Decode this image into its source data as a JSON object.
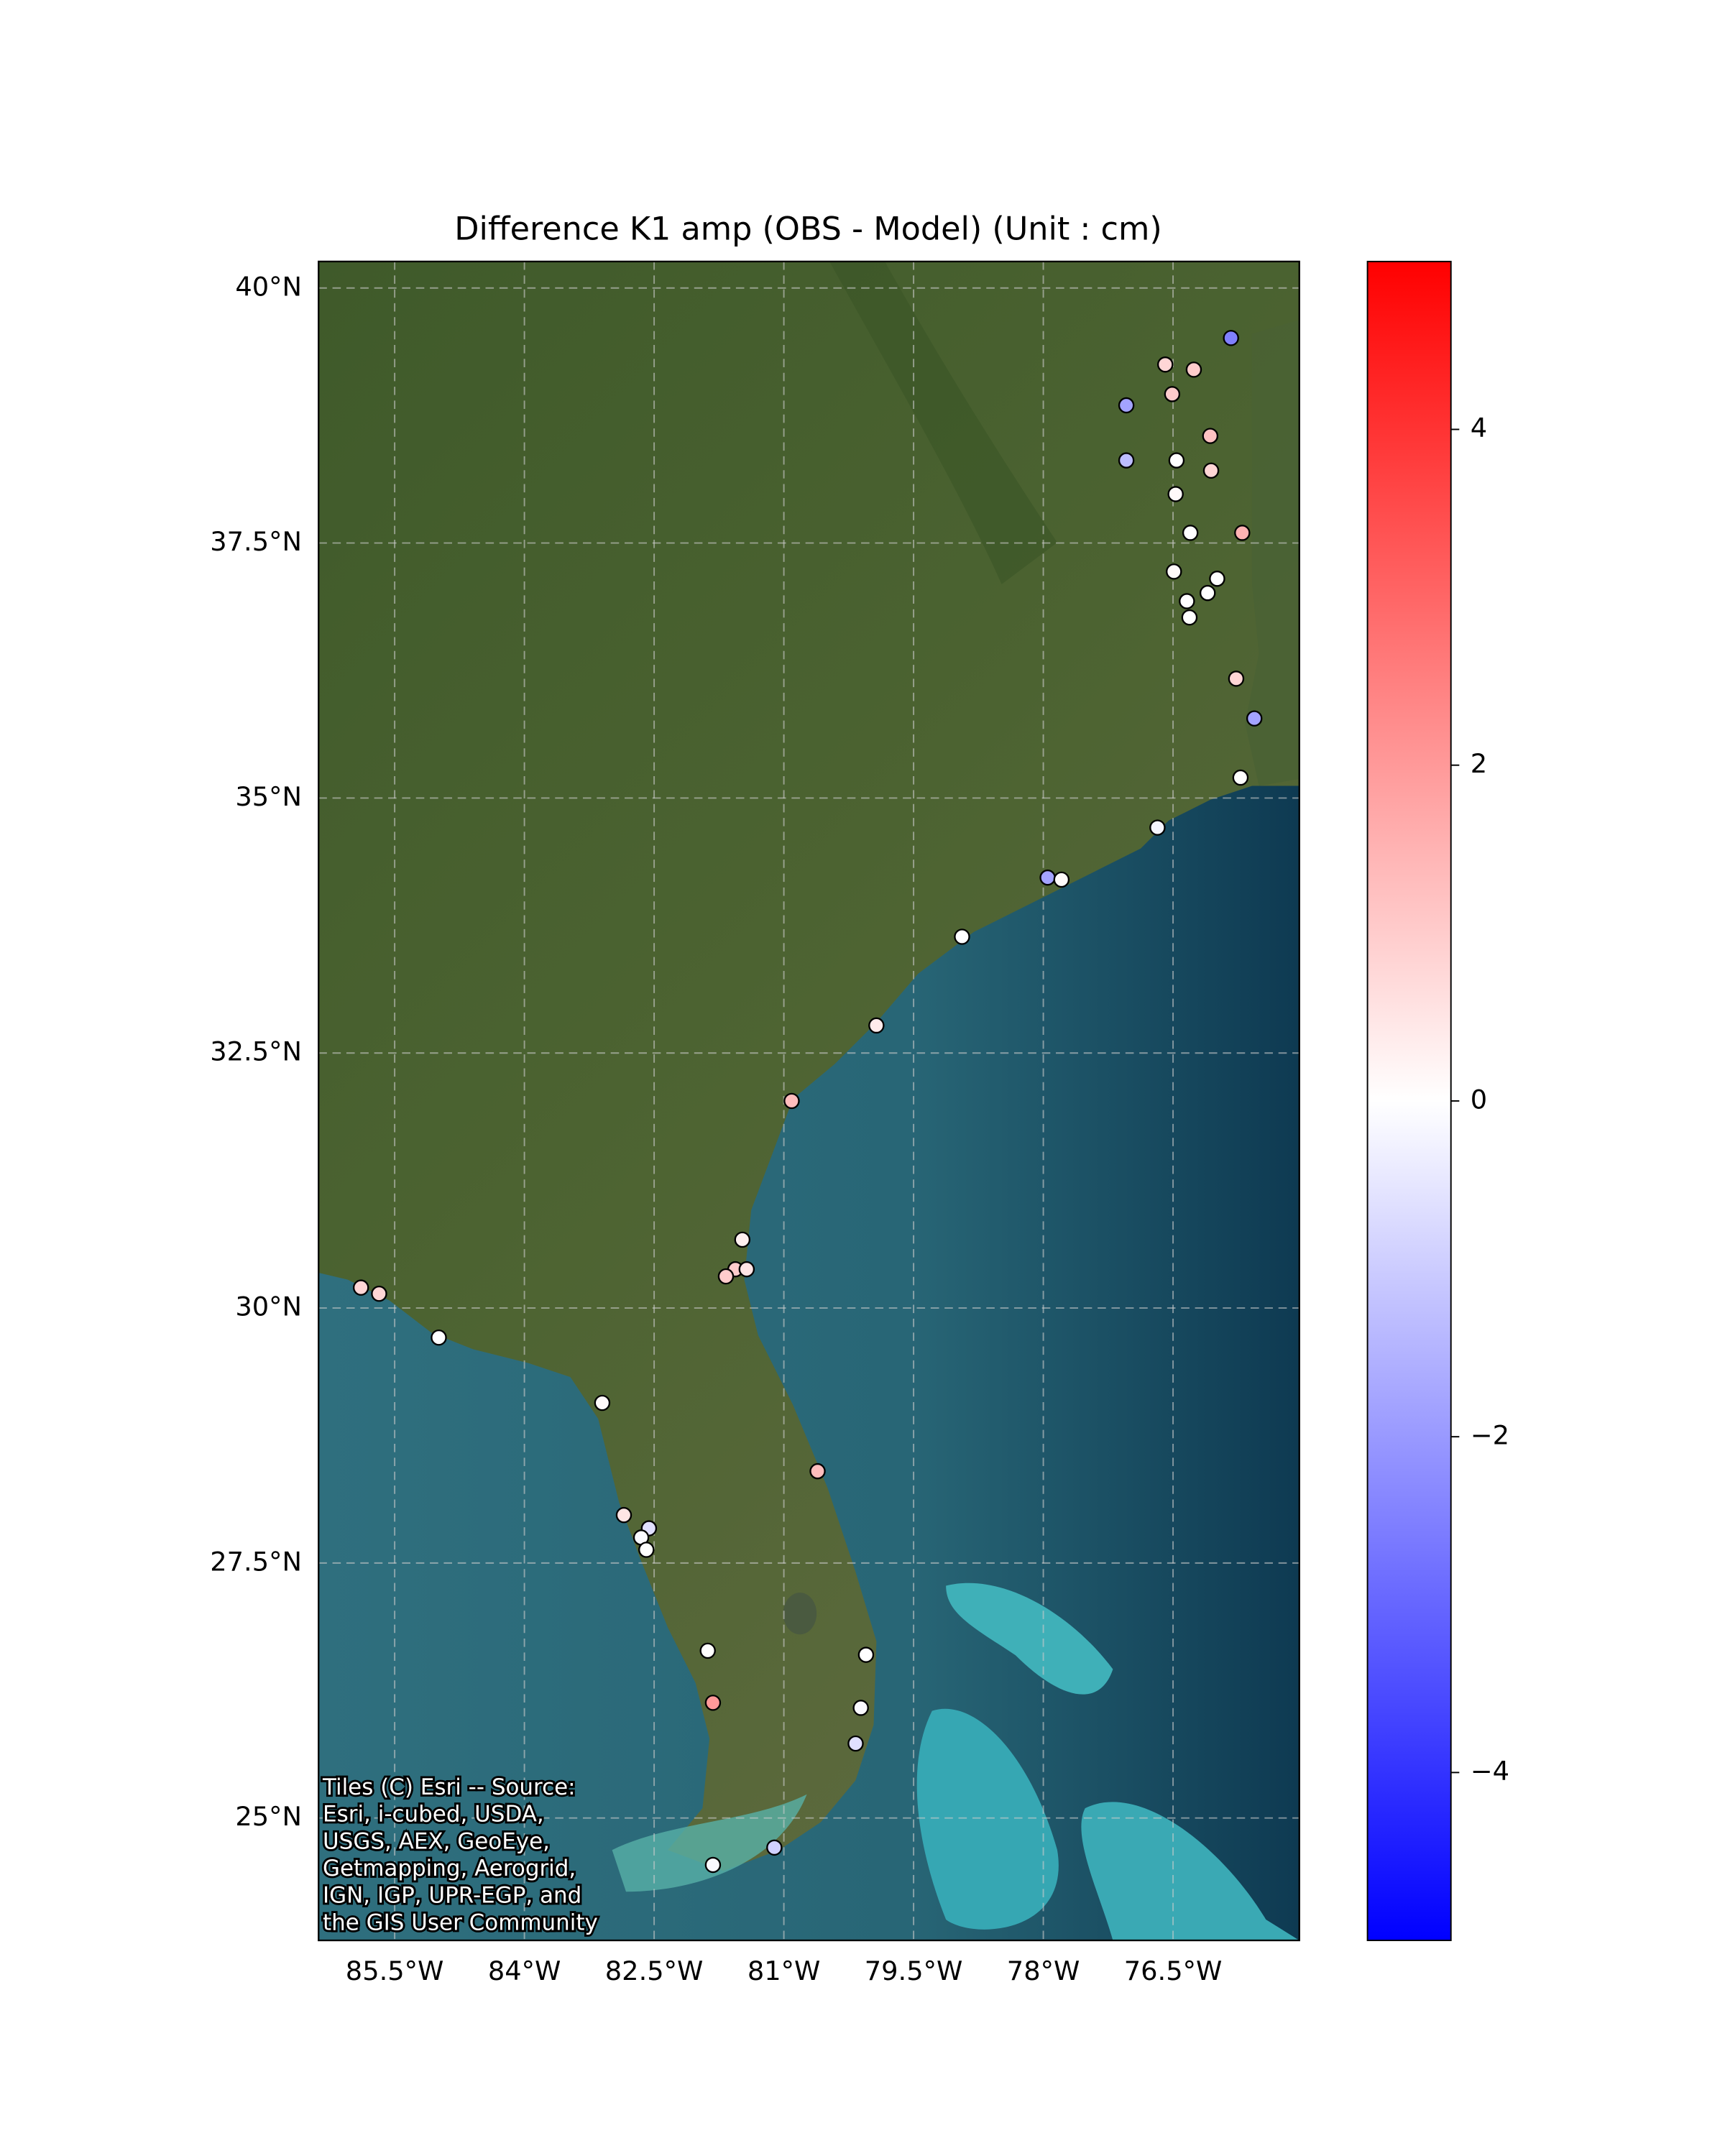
{
  "chart_data": {
    "type": "scatter",
    "title": "Difference K1 amp (OBS - Model) (Unit : cm)",
    "xlim": [
      -86.38,
      -75.04
    ],
    "ylim": [
      23.8,
      40.26
    ],
    "xticks": [
      {
        "value": -85.5,
        "label": "85.5°W"
      },
      {
        "value": -84,
        "label": "84°W"
      },
      {
        "value": -82.5,
        "label": "82.5°W"
      },
      {
        "value": -81,
        "label": "81°W"
      },
      {
        "value": -79.5,
        "label": "79.5°W"
      },
      {
        "value": -78,
        "label": "78°W"
      },
      {
        "value": -76.5,
        "label": "76.5°W"
      }
    ],
    "yticks": [
      {
        "value": 25,
        "label": "25°N"
      },
      {
        "value": 27.5,
        "label": "27.5°N"
      },
      {
        "value": 30,
        "label": "30°N"
      },
      {
        "value": 32.5,
        "label": "32.5°N"
      },
      {
        "value": 35,
        "label": "35°N"
      },
      {
        "value": 37.5,
        "label": "37.5°N"
      },
      {
        "value": 40,
        "label": "40°N"
      }
    ],
    "grid": true,
    "colormap": "bwr",
    "clim": [
      -5,
      5
    ],
    "cticks": [
      {
        "value": -4,
        "label": "−4"
      },
      {
        "value": -2,
        "label": "−2"
      },
      0,
      2,
      4
    ],
    "x": [
      -75.83,
      -76.59,
      -76.26,
      -77.04,
      -76.51,
      -76.07,
      -77.04,
      -76.46,
      -76.06,
      -76.47,
      -76.3,
      -75.7,
      -76.49,
      -75.99,
      -76.1,
      -76.34,
      -76.31,
      -75.77,
      -75.56,
      -75.72,
      -76.68,
      -77.95,
      -77.79,
      -78.94,
      -79.93,
      -80.91,
      -81.48,
      -81.56,
      -81.43,
      -81.67,
      -85.89,
      -85.68,
      -84.99,
      -83.1,
      -80.61,
      -82.85,
      -82.56,
      -82.65,
      -82.59,
      -81.88,
      -80.05,
      -81.82,
      -80.11,
      -80.17,
      -81.82,
      -81.11
    ],
    "y": [
      39.51,
      39.25,
      39.2,
      38.85,
      38.96,
      38.55,
      38.31,
      38.31,
      38.21,
      37.98,
      37.6,
      37.6,
      37.22,
      37.15,
      37.01,
      36.93,
      36.77,
      36.17,
      35.78,
      35.2,
      34.71,
      34.22,
      34.2,
      33.64,
      32.77,
      32.03,
      30.67,
      30.38,
      30.38,
      30.31,
      30.2,
      30.14,
      29.71,
      29.07,
      28.4,
      27.97,
      27.84,
      27.75,
      27.63,
      26.64,
      26.6,
      26.13,
      26.08,
      25.73,
      24.54,
      24.71
    ],
    "values": [
      -2.5,
      0.8,
      1.0,
      -1.8,
      1.0,
      1.2,
      -1.3,
      0,
      0.8,
      0.1,
      0,
      1.5,
      0.1,
      0,
      0,
      0,
      0,
      0.8,
      -1.8,
      0,
      -0.2,
      -1.8,
      0.1,
      0,
      0.4,
      1.3,
      0.3,
      1.0,
      0.5,
      1.0,
      0.8,
      0.8,
      0,
      0.1,
      1.3,
      0.5,
      -0.6,
      -0.1,
      0,
      0,
      0,
      2.0,
      -0.1,
      -0.6,
      -0.1,
      -0.9
    ],
    "attribution": [
      "Tiles (C) Esri -- Source:",
      "Esri, i-cubed, USDA,",
      "USGS, AEX, GeoEye,",
      "Getmapping, Aerogrid,",
      "IGN, IGP, UPR-EGP, and",
      "the GIS User Community"
    ]
  }
}
